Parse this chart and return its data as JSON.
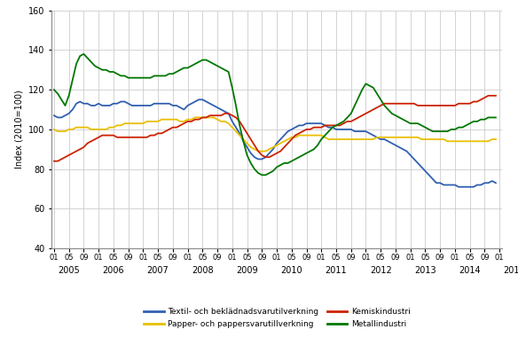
{
  "ylabel": "Index (2010=100)",
  "ylim": [
    40,
    160
  ],
  "yticks": [
    40,
    60,
    80,
    100,
    120,
    140,
    160
  ],
  "colors": {
    "blue": "#3060B0",
    "yellow": "#E8C000",
    "red": "#CC2200",
    "green": "#007700"
  },
  "legend_labels": [
    "Textil- och beklädnadsvarutilverkning",
    "Papper- och pappersvarutillverkning",
    "Kemiskindustri",
    "Metallindustri"
  ],
  "blue": [
    107,
    106,
    106,
    107,
    108,
    110,
    113,
    114,
    113,
    113,
    112,
    112,
    113,
    112,
    112,
    112,
    113,
    113,
    114,
    114,
    113,
    112,
    112,
    112,
    112,
    112,
    112,
    113,
    113,
    113,
    113,
    113,
    112,
    112,
    111,
    110,
    112,
    113,
    114,
    115,
    115,
    114,
    113,
    112,
    111,
    110,
    109,
    108,
    104,
    101,
    98,
    94,
    91,
    88,
    86,
    85,
    85,
    86,
    88,
    90,
    93,
    95,
    97,
    99,
    100,
    101,
    102,
    102,
    103,
    103,
    103,
    103,
    103,
    102,
    101,
    101,
    100,
    100,
    100,
    100,
    100,
    99,
    99,
    99,
    99,
    98,
    97,
    96,
    95,
    95,
    94,
    93,
    92,
    91,
    90,
    89,
    87,
    85,
    83,
    81,
    79,
    77,
    75,
    73,
    73,
    72,
    72,
    72,
    72,
    71,
    71,
    71,
    71,
    71,
    72,
    72,
    73,
    73,
    74,
    73
  ],
  "yellow": [
    100,
    99,
    99,
    99,
    100,
    100,
    101,
    101,
    101,
    101,
    100,
    100,
    100,
    100,
    100,
    101,
    101,
    102,
    102,
    103,
    103,
    103,
    103,
    103,
    103,
    104,
    104,
    104,
    104,
    105,
    105,
    105,
    105,
    105,
    104,
    104,
    105,
    105,
    106,
    106,
    106,
    106,
    106,
    106,
    105,
    104,
    104,
    103,
    101,
    99,
    97,
    95,
    93,
    91,
    90,
    89,
    89,
    89,
    90,
    91,
    92,
    93,
    94,
    95,
    96,
    96,
    97,
    97,
    97,
    97,
    97,
    97,
    97,
    96,
    95,
    95,
    95,
    95,
    95,
    95,
    95,
    95,
    95,
    95,
    95,
    95,
    95,
    96,
    96,
    96,
    96,
    96,
    96,
    96,
    96,
    96,
    96,
    96,
    96,
    95,
    95,
    95,
    95,
    95,
    95,
    95,
    94,
    94,
    94,
    94,
    94,
    94,
    94,
    94,
    94,
    94,
    94,
    94,
    95,
    95
  ],
  "red": [
    84,
    84,
    85,
    86,
    87,
    88,
    89,
    90,
    91,
    93,
    94,
    95,
    96,
    97,
    97,
    97,
    97,
    96,
    96,
    96,
    96,
    96,
    96,
    96,
    96,
    96,
    97,
    97,
    98,
    98,
    99,
    100,
    101,
    101,
    102,
    103,
    104,
    104,
    105,
    105,
    106,
    106,
    107,
    107,
    107,
    107,
    108,
    108,
    107,
    106,
    104,
    101,
    98,
    95,
    92,
    89,
    87,
    86,
    86,
    87,
    88,
    89,
    91,
    93,
    95,
    97,
    98,
    99,
    100,
    100,
    101,
    101,
    101,
    102,
    102,
    102,
    102,
    102,
    103,
    104,
    104,
    105,
    106,
    107,
    108,
    109,
    110,
    111,
    112,
    113,
    113,
    113,
    113,
    113,
    113,
    113,
    113,
    113,
    112,
    112,
    112,
    112,
    112,
    112,
    112,
    112,
    112,
    112,
    112,
    113,
    113,
    113,
    113,
    114,
    114,
    115,
    116,
    117,
    117,
    117
  ],
  "green": [
    120,
    118,
    115,
    112,
    117,
    125,
    133,
    137,
    138,
    136,
    134,
    132,
    131,
    130,
    130,
    129,
    129,
    128,
    127,
    127,
    126,
    126,
    126,
    126,
    126,
    126,
    126,
    127,
    127,
    127,
    127,
    128,
    128,
    129,
    130,
    131,
    131,
    132,
    133,
    134,
    135,
    135,
    134,
    133,
    132,
    131,
    130,
    129,
    121,
    112,
    102,
    94,
    87,
    83,
    80,
    78,
    77,
    77,
    78,
    79,
    81,
    82,
    83,
    83,
    84,
    85,
    86,
    87,
    88,
    89,
    90,
    92,
    95,
    97,
    99,
    101,
    102,
    103,
    104,
    106,
    108,
    112,
    116,
    120,
    123,
    122,
    121,
    118,
    115,
    112,
    110,
    108,
    107,
    106,
    105,
    104,
    103,
    103,
    103,
    102,
    101,
    100,
    99,
    99,
    99,
    99,
    99,
    100,
    100,
    101,
    101,
    102,
    103,
    104,
    104,
    105,
    105,
    106,
    106,
    106
  ]
}
